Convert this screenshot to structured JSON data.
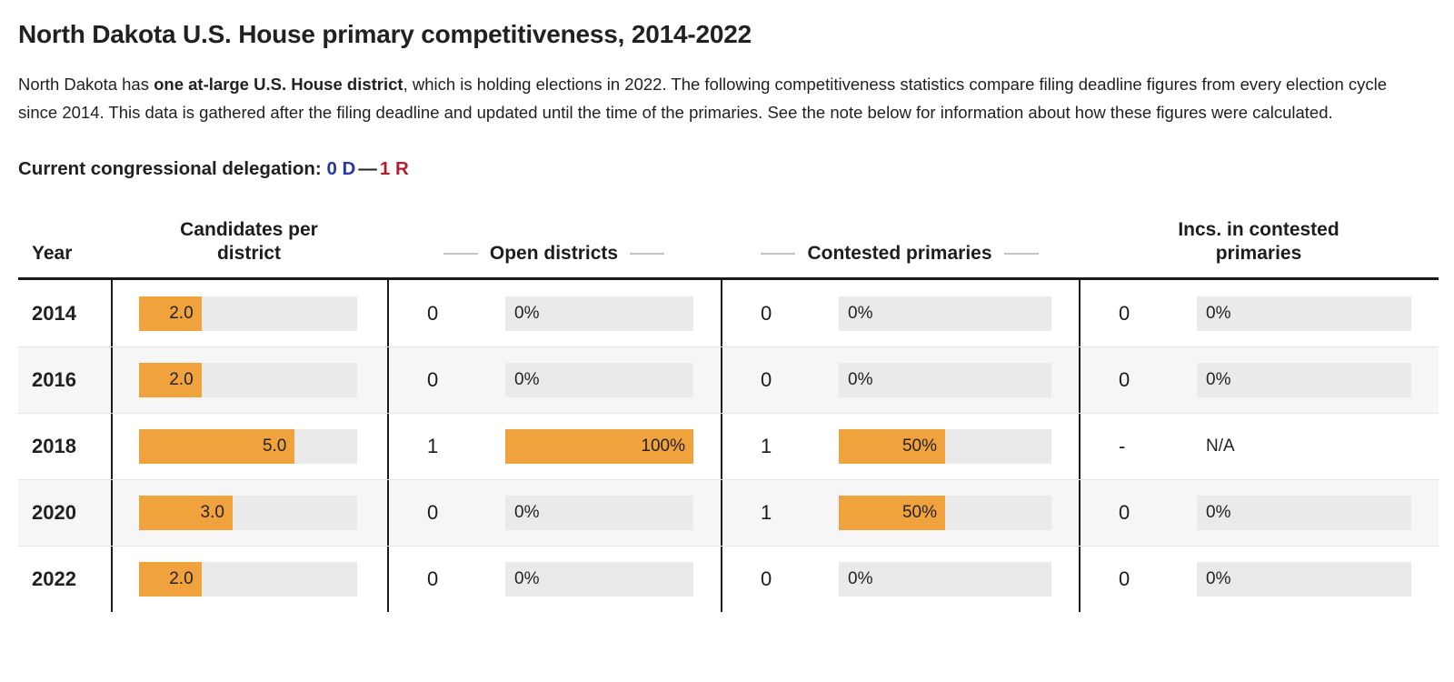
{
  "page": {
    "title": "North Dakota U.S. House primary competitiveness, 2014-2022",
    "intro_pre": "North Dakota has ",
    "intro_bold": "one at-large U.S. House district",
    "intro_post": ", which is holding elections in 2022. The following competitiveness statistics compare filing deadline figures from every election cycle since 2014. This data is gathered after the filing deadline and updated until the time of the primaries. See the note below for information about how these figures were calculated.",
    "delegation_label": "Current congressional delegation:",
    "delegation_dem": "0 D",
    "delegation_sep": "—",
    "delegation_rep": "1 R"
  },
  "colors": {
    "bar_orange": "#F0A23C",
    "bar_track_gray": "#EAEAEA",
    "row_stripe": "#F6F6F6",
    "dem_blue": "#2639A5",
    "rep_red": "#B01F2B"
  },
  "table": {
    "headers": {
      "year": "Year",
      "candidates": "Candidates per district",
      "open": "Open districts",
      "contested": "Contested primaries",
      "incs": "Incs. in contested primaries"
    },
    "rows": [
      {
        "year": "2014",
        "candidates": {
          "label": "2.0",
          "fill": 28.6,
          "track": true
        },
        "open": {
          "count": "0",
          "label": "0%",
          "fill": 0,
          "track": true
        },
        "contested": {
          "count": "0",
          "label": "0%",
          "fill": 0,
          "track": true
        },
        "incs": {
          "count": "0",
          "label": "0%",
          "fill": 0,
          "track": true
        }
      },
      {
        "year": "2016",
        "candidates": {
          "label": "2.0",
          "fill": 28.6,
          "track": true
        },
        "open": {
          "count": "0",
          "label": "0%",
          "fill": 0,
          "track": true
        },
        "contested": {
          "count": "0",
          "label": "0%",
          "fill": 0,
          "track": true
        },
        "incs": {
          "count": "0",
          "label": "0%",
          "fill": 0,
          "track": true
        }
      },
      {
        "year": "2018",
        "candidates": {
          "label": "5.0",
          "fill": 71.4,
          "track": true
        },
        "open": {
          "count": "1",
          "label": "100%",
          "fill": 100,
          "track": true
        },
        "contested": {
          "count": "1",
          "label": "50%",
          "fill": 50,
          "track": true
        },
        "incs": {
          "count": "-",
          "label": "N/A",
          "fill": 0,
          "track": false
        }
      },
      {
        "year": "2020",
        "candidates": {
          "label": "3.0",
          "fill": 42.9,
          "track": true
        },
        "open": {
          "count": "0",
          "label": "0%",
          "fill": 0,
          "track": true
        },
        "contested": {
          "count": "1",
          "label": "50%",
          "fill": 50,
          "track": true
        },
        "incs": {
          "count": "0",
          "label": "0%",
          "fill": 0,
          "track": true
        }
      },
      {
        "year": "2022",
        "candidates": {
          "label": "2.0",
          "fill": 28.6,
          "track": true
        },
        "open": {
          "count": "0",
          "label": "0%",
          "fill": 0,
          "track": true
        },
        "contested": {
          "count": "0",
          "label": "0%",
          "fill": 0,
          "track": true
        },
        "incs": {
          "count": "0",
          "label": "0%",
          "fill": 0,
          "track": true
        }
      }
    ]
  },
  "chart_data": {
    "type": "table",
    "title": "North Dakota U.S. House primary competitiveness, 2014-2022",
    "columns": [
      "Year",
      "Candidates per district",
      "Open districts (count)",
      "Open districts (%)",
      "Contested primaries (count)",
      "Contested primaries (%)",
      "Incs. in contested primaries (count)",
      "Incs. in contested primaries (%)"
    ],
    "rows": [
      [
        2014,
        2.0,
        0,
        "0%",
        0,
        "0%",
        0,
        "0%"
      ],
      [
        2016,
        2.0,
        0,
        "0%",
        0,
        "0%",
        0,
        "0%"
      ],
      [
        2018,
        5.0,
        1,
        "100%",
        1,
        "50%",
        "-",
        "N/A"
      ],
      [
        2020,
        3.0,
        0,
        "0%",
        1,
        "50%",
        0,
        "0%"
      ],
      [
        2022,
        2.0,
        0,
        "0%",
        0,
        "0%",
        0,
        "0%"
      ]
    ],
    "candidates_bar_axis_max": 7,
    "bar_color": "#F0A23C",
    "legend_position": "none",
    "grid": false
  }
}
